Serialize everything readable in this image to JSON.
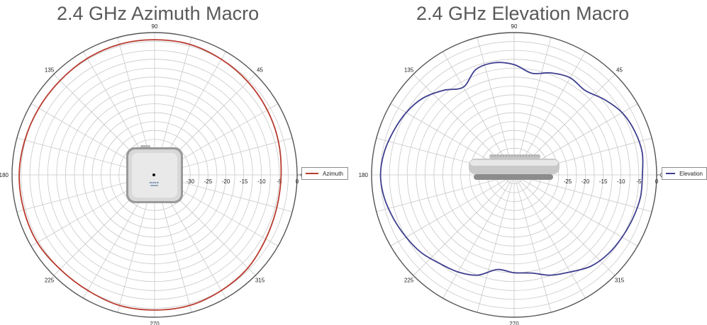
{
  "colors": {
    "azimuth": "#b83a2e",
    "elevation": "#3e3f8f",
    "grid": "#c8c8c8",
    "frame": "#555555"
  },
  "chart_data": [
    {
      "type": "line",
      "projection": "polar",
      "title": "2.4 GHz Azimuth Macro",
      "angle_labels": [
        "90",
        "45",
        "0",
        "315",
        "270",
        "225",
        "180",
        "135"
      ],
      "radial_ticks": [
        "-30",
        "-25",
        "-20",
        "-15",
        "-10",
        "-5",
        "0"
      ],
      "radial_range": [
        -40,
        0
      ],
      "legend": "right",
      "series": [
        {
          "name": "Azimuth",
          "angle_deg": [
            0,
            15,
            30,
            45,
            60,
            75,
            90,
            105,
            120,
            135,
            150,
            165,
            180,
            195,
            210,
            225,
            240,
            255,
            270,
            285,
            300,
            315,
            330,
            345
          ],
          "gain_db": [
            -4.5,
            -4,
            -3.5,
            -3,
            -2.5,
            -2,
            -2,
            -2,
            -2.2,
            -2.5,
            -2.5,
            -2.3,
            -2,
            -2,
            -2,
            -2.5,
            -2.5,
            -2,
            -2,
            -2,
            -2.5,
            -3,
            -4,
            -4.5
          ]
        }
      ],
      "device_image": "access-point-top-view"
    },
    {
      "type": "line",
      "projection": "polar",
      "title": "2.4 GHz Elevation Macro",
      "angle_labels": [
        "90",
        "45",
        "0",
        "315",
        "270",
        "225",
        "180",
        "135"
      ],
      "radial_ticks": [
        "-25",
        "-20",
        "-15",
        "-10",
        "-5",
        "0"
      ],
      "radial_range": [
        -40,
        0
      ],
      "legend": "right",
      "series": [
        {
          "name": "Elevation",
          "angle_deg": [
            0,
            10,
            20,
            30,
            40,
            50,
            60,
            70,
            80,
            90,
            100,
            110,
            120,
            130,
            140,
            150,
            160,
            170,
            180,
            190,
            200,
            210,
            220,
            230,
            240,
            250,
            260,
            270,
            280,
            290,
            300,
            310,
            320,
            330,
            340,
            350
          ],
          "gain_db": [
            -4,
            -3.5,
            -4,
            -5,
            -7,
            -9,
            -8.5,
            -9.5,
            -11,
            -9,
            -8,
            -8.5,
            -11.5,
            -9,
            -6.5,
            -5,
            -4,
            -3,
            -2.5,
            -3,
            -4,
            -5,
            -6,
            -7.5,
            -8.5,
            -10,
            -13,
            -12.5,
            -12,
            -10,
            -8.5,
            -6.5,
            -5.5,
            -5,
            -4.5,
            -4
          ]
        }
      ],
      "device_image": "access-point-side-view"
    }
  ]
}
